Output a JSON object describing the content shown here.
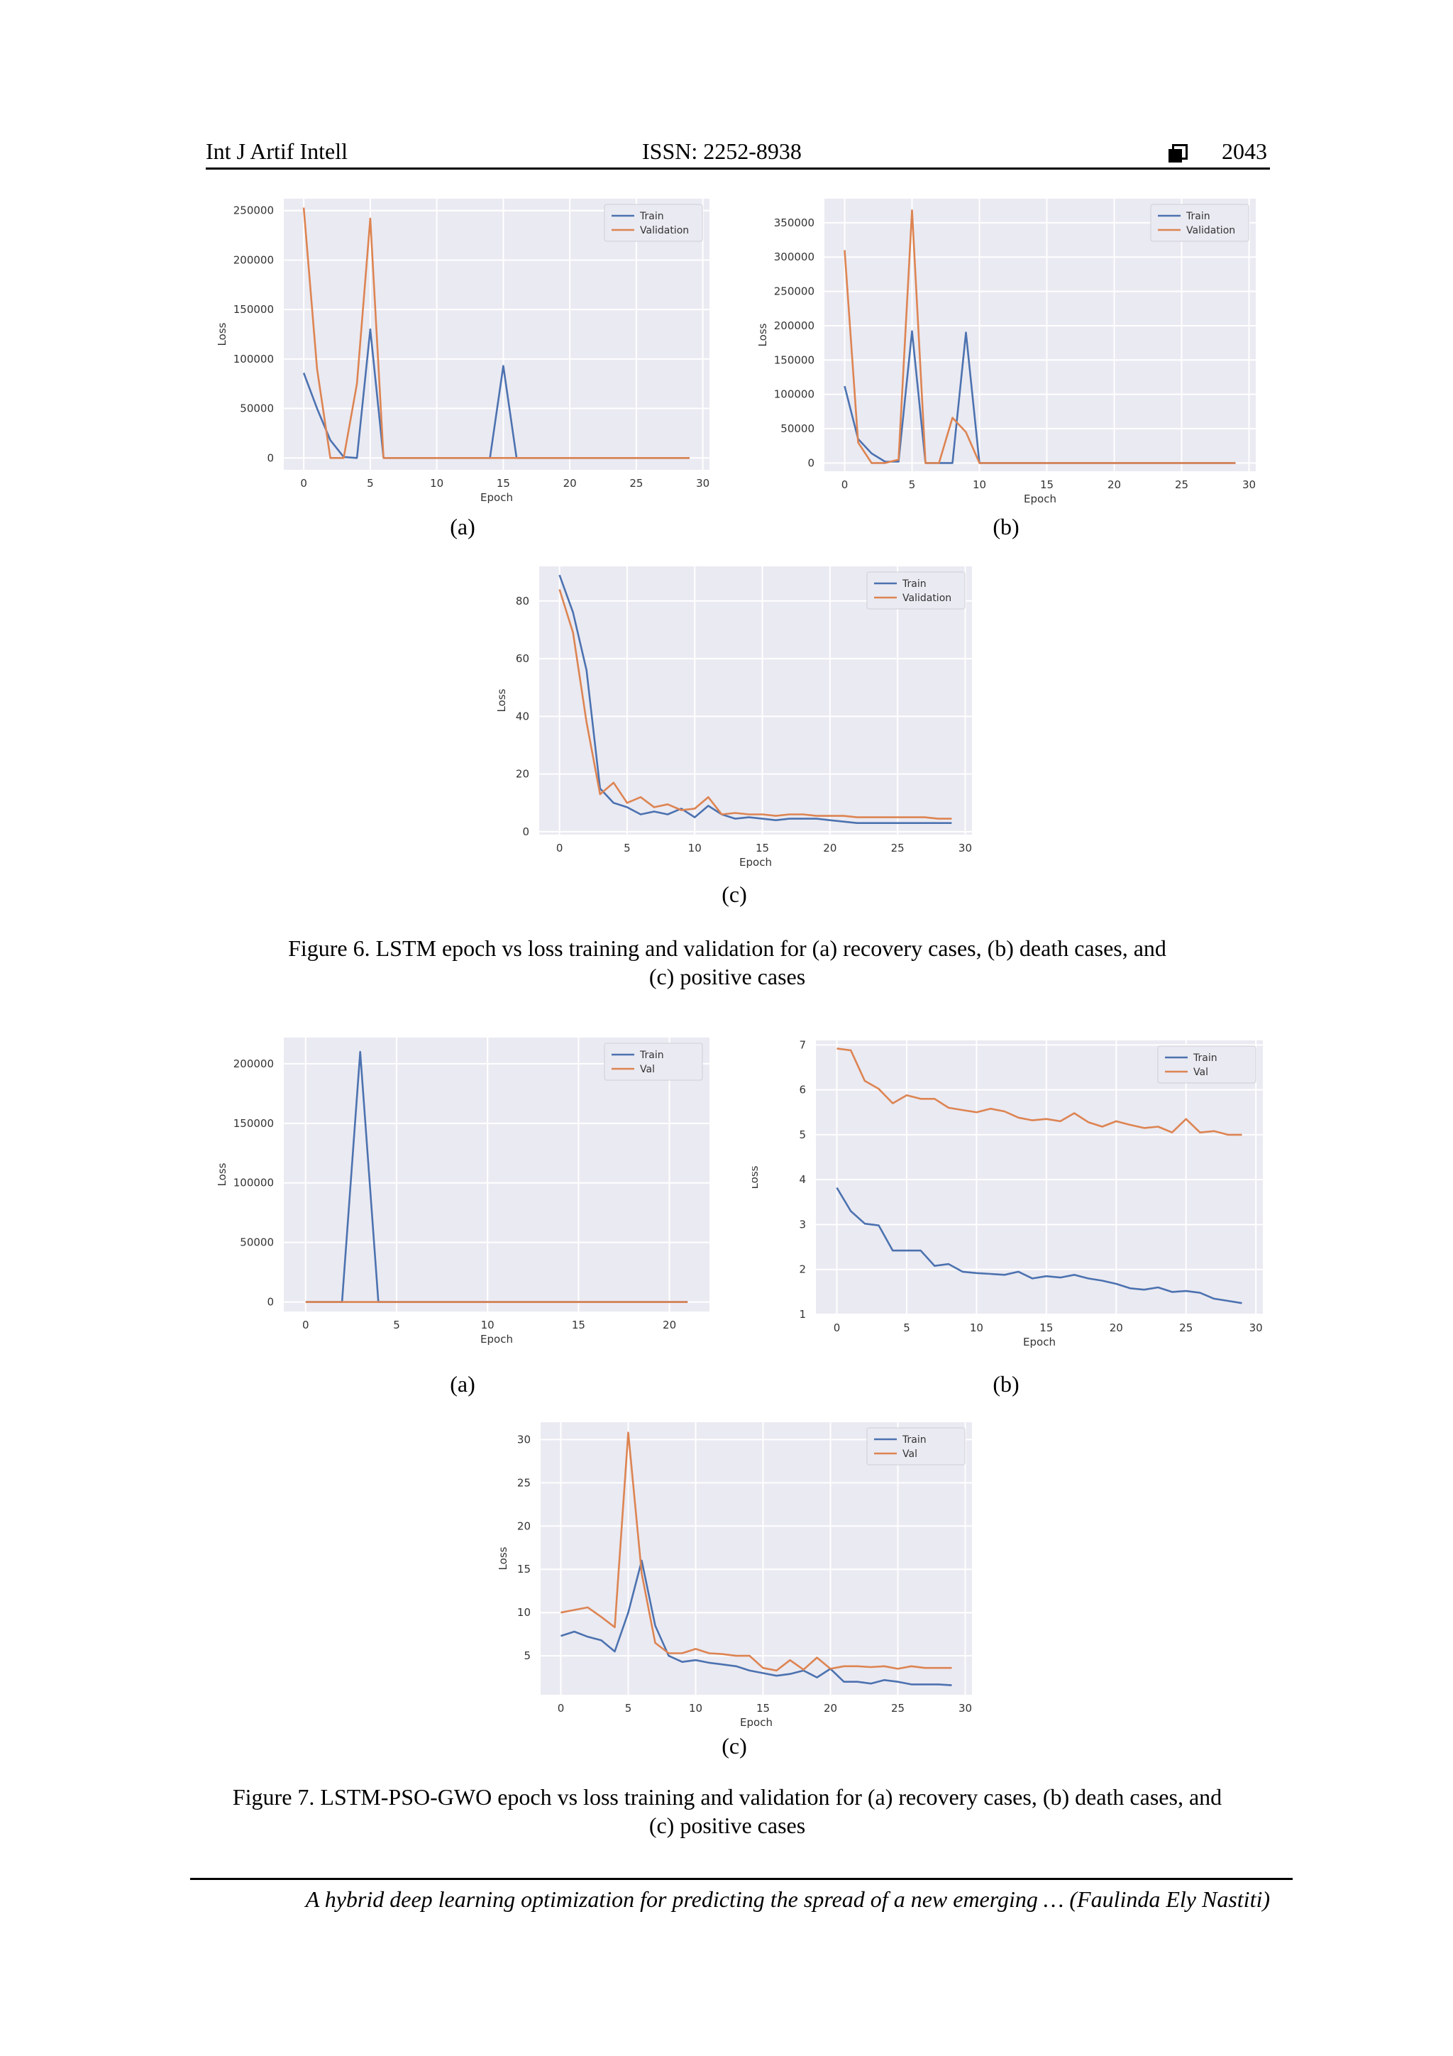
{
  "header": {
    "journal": "Int J Artif Intell",
    "issn": "ISSN: 2252-8938",
    "page_number": "2043",
    "page_icon": "square-box-icon"
  },
  "figure6": {
    "labels": [
      "(a)",
      "(b)",
      "(c)"
    ],
    "caption_line1": "Figure 6. LSTM epoch vs loss training and validation for (a) recovery cases, (b) death cases, and",
    "caption_line2": "(c) positive cases"
  },
  "figure7": {
    "labels": [
      "(a)",
      "(b)",
      "(c)"
    ],
    "caption_line1": "Figure 7. LSTM-PSO-GWO epoch vs loss training and validation for (a) recovery cases, (b) death cases, and",
    "caption_line2": "(c) positive cases"
  },
  "footer": {
    "text": "A hybrid deep learning optimization for predicting the spread of a new emerging … (Faulinda Ely Nastiti)"
  },
  "colors": {
    "train": "#4c72b0",
    "validation": "#dd8452",
    "plot_bg": "#eaeaf2",
    "grid": "#ffffff"
  },
  "chart_data": [
    {
      "id": "fig6a",
      "type": "line",
      "xlabel": "Epoch",
      "ylabel": "Loss",
      "xlim": [
        -1.5,
        30.5
      ],
      "ylim": [
        -12000,
        262000
      ],
      "xticks": [
        0,
        5,
        10,
        15,
        20,
        25,
        30
      ],
      "yticks": [
        0,
        50000,
        100000,
        150000,
        200000,
        250000
      ],
      "ytick_labels": [
        "0",
        "50000",
        "100000",
        "150000",
        "200000",
        "250000"
      ],
      "grid": true,
      "legend": "top-right",
      "x": [
        0,
        1,
        2,
        3,
        4,
        5,
        6,
        7,
        8,
        9,
        10,
        11,
        12,
        13,
        14,
        15,
        16,
        17,
        18,
        19,
        20,
        21,
        22,
        23,
        24,
        25,
        26,
        27,
        28,
        29
      ],
      "series": [
        {
          "name": "Train",
          "color": "#4c72b0",
          "values": [
            86000,
            50000,
            18000,
            1000,
            0,
            130000,
            0,
            0,
            0,
            0,
            0,
            0,
            0,
            0,
            0,
            93000,
            0,
            0,
            0,
            0,
            0,
            0,
            0,
            0,
            0,
            0,
            0,
            0,
            0,
            0
          ]
        },
        {
          "name": "Validation",
          "color": "#dd8452",
          "values": [
            253000,
            90000,
            0,
            0,
            75000,
            242000,
            0,
            0,
            0,
            0,
            0,
            0,
            0,
            0,
            0,
            0,
            0,
            0,
            0,
            0,
            0,
            0,
            0,
            0,
            0,
            0,
            0,
            0,
            0,
            0
          ]
        }
      ]
    },
    {
      "id": "fig6b",
      "type": "line",
      "xlabel": "Epoch",
      "ylabel": "Loss",
      "xlim": [
        -1.5,
        30.5
      ],
      "ylim": [
        -12000,
        385000
      ],
      "xticks": [
        0,
        5,
        10,
        15,
        20,
        25,
        30
      ],
      "yticks": [
        0,
        50000,
        100000,
        150000,
        200000,
        250000,
        300000,
        350000
      ],
      "ytick_labels": [
        "0",
        "50000",
        "100000",
        "150000",
        "200000",
        "250000",
        "300000",
        "350000"
      ],
      "grid": true,
      "legend": "top-right",
      "x": [
        0,
        1,
        2,
        3,
        4,
        5,
        6,
        7,
        8,
        9,
        10,
        11,
        12,
        13,
        14,
        15,
        16,
        17,
        18,
        19,
        20,
        21,
        22,
        23,
        24,
        25,
        26,
        27,
        28,
        29
      ],
      "series": [
        {
          "name": "Train",
          "color": "#4c72b0",
          "values": [
            112000,
            35000,
            14000,
            2000,
            2000,
            192000,
            0,
            0,
            0,
            190000,
            0,
            0,
            0,
            0,
            0,
            0,
            0,
            0,
            0,
            0,
            0,
            0,
            0,
            0,
            0,
            0,
            0,
            0,
            0,
            0
          ]
        },
        {
          "name": "Validation",
          "color": "#dd8452",
          "values": [
            310000,
            30000,
            0,
            0,
            5000,
            368000,
            0,
            0,
            66000,
            45000,
            0,
            0,
            0,
            0,
            0,
            0,
            0,
            0,
            0,
            0,
            0,
            0,
            0,
            0,
            0,
            0,
            0,
            0,
            0,
            0
          ]
        }
      ]
    },
    {
      "id": "fig6c",
      "type": "line",
      "xlabel": "Epoch",
      "ylabel": "Loss",
      "xlim": [
        -1.5,
        30.5
      ],
      "ylim": [
        -1,
        92
      ],
      "xticks": [
        0,
        5,
        10,
        15,
        20,
        25,
        30
      ],
      "yticks": [
        0,
        20,
        40,
        60,
        80
      ],
      "ytick_labels": [
        "0",
        "20",
        "40",
        "60",
        "80"
      ],
      "grid": true,
      "legend": "top-right",
      "x": [
        0,
        1,
        2,
        3,
        4,
        5,
        6,
        7,
        8,
        9,
        10,
        11,
        12,
        13,
        14,
        15,
        16,
        17,
        18,
        19,
        20,
        21,
        22,
        23,
        24,
        25,
        26,
        27,
        28,
        29
      ],
      "series": [
        {
          "name": "Train",
          "color": "#4c72b0",
          "values": [
            89,
            76,
            56,
            15,
            10,
            8.5,
            6,
            7,
            6,
            8,
            5,
            9,
            6,
            4.5,
            5,
            4.5,
            4,
            4.5,
            4.5,
            4.5,
            4,
            3.5,
            3,
            3,
            3,
            3,
            3,
            3,
            3,
            3
          ]
        },
        {
          "name": "Validation",
          "color": "#dd8452",
          "values": [
            84,
            69,
            38,
            13,
            17,
            10,
            12,
            8.5,
            9.5,
            7.5,
            8,
            12,
            6,
            6.5,
            6,
            6,
            5.5,
            6,
            6,
            5.5,
            5.5,
            5.5,
            5,
            5,
            5,
            5,
            5,
            5,
            4.5,
            4.5
          ]
        }
      ]
    },
    {
      "id": "fig7a",
      "type": "line",
      "xlabel": "Epoch",
      "ylabel": "Loss",
      "xlim": [
        -1.2,
        22.2
      ],
      "ylim": [
        -8000,
        222000
      ],
      "xticks": [
        0,
        5,
        10,
        15,
        20
      ],
      "yticks": [
        0,
        50000,
        100000,
        150000,
        200000
      ],
      "ytick_labels": [
        "0",
        "50000",
        "100000",
        "150000",
        "200000"
      ],
      "grid": true,
      "legend": "top-right",
      "x": [
        0,
        1,
        2,
        3,
        4,
        5,
        6,
        7,
        8,
        9,
        10,
        11,
        12,
        13,
        14,
        15,
        16,
        17,
        18,
        19,
        20,
        21
      ],
      "series": [
        {
          "name": "Train",
          "color": "#4c72b0",
          "values": [
            0,
            0,
            0,
            210000,
            0,
            0,
            0,
            0,
            0,
            0,
            0,
            0,
            0,
            0,
            0,
            0,
            0,
            0,
            0,
            0,
            0,
            0
          ]
        },
        {
          "name": "Val",
          "color": "#dd8452",
          "values": [
            0,
            0,
            0,
            0,
            0,
            0,
            0,
            0,
            0,
            0,
            0,
            0,
            0,
            0,
            0,
            0,
            0,
            0,
            0,
            0,
            0,
            0
          ]
        }
      ]
    },
    {
      "id": "fig7b",
      "type": "line",
      "xlabel": "Epoch",
      "ylabel": "Loss",
      "xlim": [
        -1.5,
        30.5
      ],
      "ylim": [
        1,
        7.1
      ],
      "xticks": [
        0,
        5,
        10,
        15,
        20,
        25,
        30
      ],
      "yticks": [
        1,
        2,
        3,
        4,
        5,
        6,
        7
      ],
      "ytick_labels": [
        "1",
        "2",
        "3",
        "4",
        "5",
        "6",
        "7"
      ],
      "grid": true,
      "legend": "top-right",
      "x": [
        0,
        1,
        2,
        3,
        4,
        5,
        6,
        7,
        8,
        9,
        10,
        11,
        12,
        13,
        14,
        15,
        16,
        17,
        18,
        19,
        20,
        21,
        22,
        23,
        24,
        25,
        26,
        27,
        28,
        29
      ],
      "series": [
        {
          "name": "Train",
          "color": "#4c72b0",
          "values": [
            3.82,
            3.3,
            3.02,
            2.98,
            2.42,
            2.42,
            2.42,
            2.08,
            2.12,
            1.95,
            1.92,
            1.9,
            1.88,
            1.95,
            1.8,
            1.85,
            1.82,
            1.88,
            1.8,
            1.75,
            1.68,
            1.58,
            1.55,
            1.6,
            1.5,
            1.52,
            1.48,
            1.35,
            1.3,
            1.25
          ]
        },
        {
          "name": "Val",
          "color": "#dd8452",
          "values": [
            6.92,
            6.88,
            6.2,
            6.02,
            5.7,
            5.88,
            5.8,
            5.8,
            5.6,
            5.55,
            5.5,
            5.58,
            5.52,
            5.38,
            5.32,
            5.35,
            5.3,
            5.48,
            5.28,
            5.18,
            5.3,
            5.22,
            5.15,
            5.18,
            5.05,
            5.35,
            5.05,
            5.08,
            5.0,
            5.0
          ]
        }
      ]
    },
    {
      "id": "fig7c",
      "type": "line",
      "xlabel": "Epoch",
      "ylabel": "Loss",
      "xlim": [
        -1.5,
        30.5
      ],
      "ylim": [
        0.5,
        32
      ],
      "xticks": [
        0,
        5,
        10,
        15,
        20,
        25,
        30
      ],
      "yticks": [
        5,
        10,
        15,
        20,
        25,
        30
      ],
      "ytick_labels": [
        "5",
        "10",
        "15",
        "20",
        "25",
        "30"
      ],
      "grid": true,
      "legend": "top-right",
      "x": [
        0,
        1,
        2,
        3,
        4,
        5,
        6,
        7,
        8,
        9,
        10,
        11,
        12,
        13,
        14,
        15,
        16,
        17,
        18,
        19,
        20,
        21,
        22,
        23,
        24,
        25,
        26,
        27,
        28,
        29
      ],
      "series": [
        {
          "name": "Train",
          "color": "#4c72b0",
          "values": [
            7.3,
            7.8,
            7.2,
            6.8,
            5.5,
            10,
            16,
            8.5,
            5,
            4.3,
            4.5,
            4.2,
            4,
            3.8,
            3.3,
            3,
            2.7,
            2.9,
            3.3,
            2.5,
            3.5,
            2,
            2,
            1.8,
            2.2,
            2,
            1.7,
            1.7,
            1.7,
            1.6
          ]
        },
        {
          "name": "Val",
          "color": "#dd8452",
          "values": [
            10,
            10.3,
            10.6,
            9.5,
            8.3,
            30.8,
            14.5,
            6.5,
            5.3,
            5.3,
            5.8,
            5.3,
            5.2,
            5,
            5,
            3.6,
            3.3,
            4.5,
            3.4,
            4.8,
            3.5,
            3.8,
            3.8,
            3.7,
            3.8,
            3.5,
            3.8,
            3.6,
            3.6,
            3.6
          ]
        }
      ]
    }
  ]
}
